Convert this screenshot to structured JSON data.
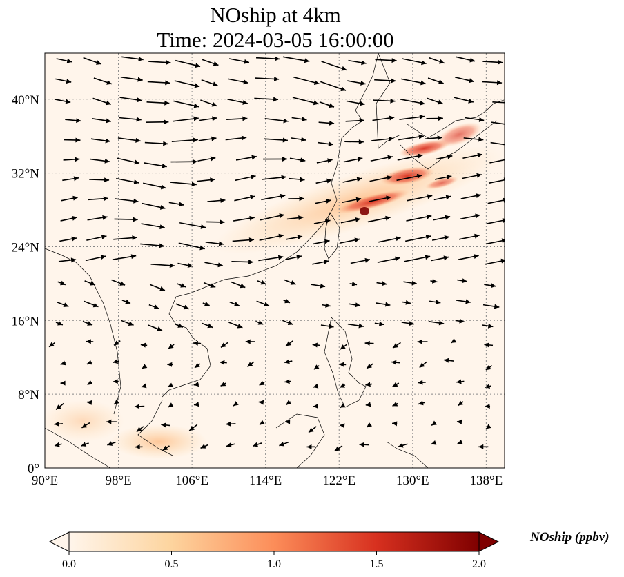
{
  "title": {
    "line1": "NOship at 4km",
    "line2": "Time: 2024-03-05 16:00:00"
  },
  "map": {
    "projection": "PlateCarree",
    "lon_range": [
      90,
      140
    ],
    "lat_range": [
      0,
      45
    ],
    "lon_ticks": [
      "90°E",
      "98°E",
      "106°E",
      "114°E",
      "122°E",
      "130°E",
      "138°E"
    ],
    "lat_ticks": [
      "0°",
      "8°N",
      "16°N",
      "24°N",
      "32°N",
      "40°N"
    ],
    "gridlines": "dotted",
    "field": "NOship",
    "vectors": "wind",
    "colors": {
      "low": "#fff5eb",
      "mid": "#fd8d3c",
      "high": "#7f0000",
      "grid": "#888888"
    }
  },
  "colorbar": {
    "label": "NOship (ppbv)",
    "ticks": [
      "0.0",
      "0.5",
      "1.0",
      "1.5",
      "2.0"
    ],
    "min": 0,
    "max": 2.0,
    "colormap": "OrRd",
    "extend": "both"
  }
}
